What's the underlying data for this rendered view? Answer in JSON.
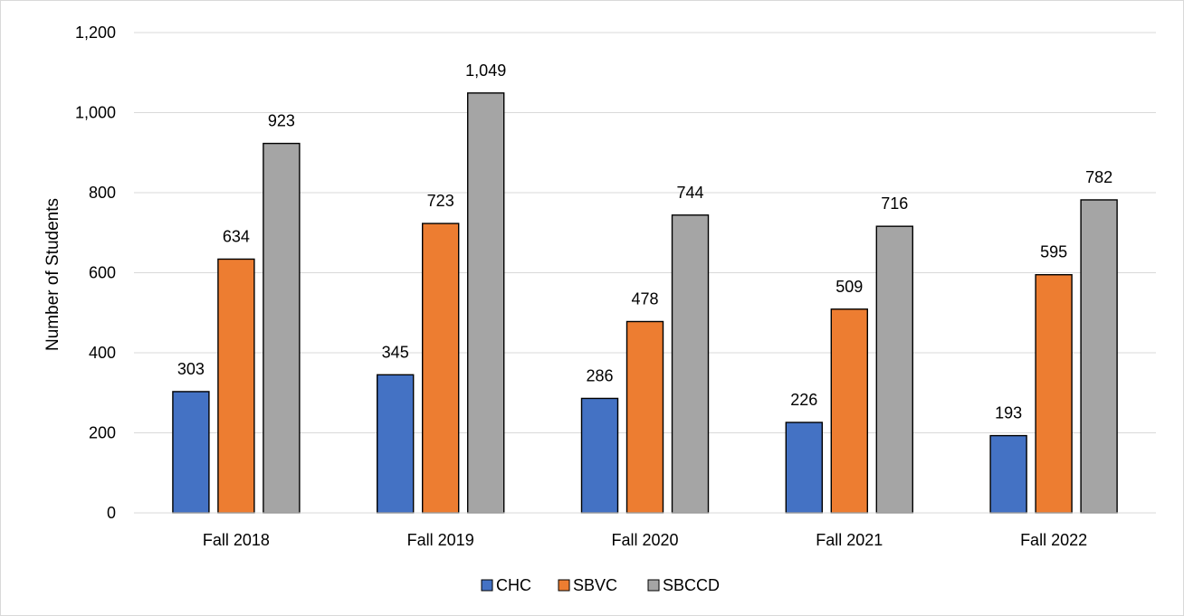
{
  "chart_data": {
    "type": "bar",
    "title": "",
    "xlabel": "",
    "ylabel": "Number of Students",
    "ylim": [
      0,
      1200
    ],
    "yticks": [
      0,
      200,
      400,
      600,
      800,
      1000,
      1200
    ],
    "ytick_labels": [
      "0",
      "200",
      "400",
      "600",
      "800",
      "1,000",
      "1,200"
    ],
    "grid": true,
    "legend_position": "bottom",
    "categories": [
      "Fall 2018",
      "Fall 2019",
      "Fall 2020",
      "Fall 2021",
      "Fall 2022"
    ],
    "series": [
      {
        "name": "CHC",
        "color": "#4472c4",
        "values": [
          303,
          345,
          286,
          226,
          193
        ],
        "labels": [
          "303",
          "345",
          "286",
          "226",
          "193"
        ]
      },
      {
        "name": "SBVC",
        "color": "#ed7d31",
        "values": [
          634,
          723,
          478,
          509,
          595
        ],
        "labels": [
          "634",
          "723",
          "478",
          "509",
          "595"
        ]
      },
      {
        "name": "SBCCD",
        "color": "#a5a5a5",
        "values": [
          923,
          1049,
          744,
          716,
          782
        ],
        "labels": [
          "923",
          "1,049",
          "744",
          "716",
          "782"
        ]
      }
    ]
  }
}
